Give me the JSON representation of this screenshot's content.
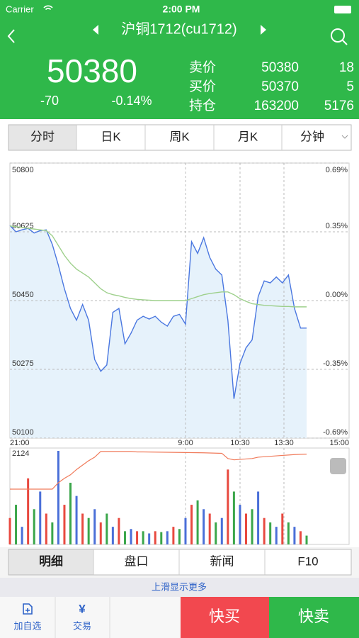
{
  "status": {
    "carrier": "Carrier",
    "time": "2:00 PM"
  },
  "header": {
    "title": "沪铜1712(cu1712)"
  },
  "quote": {
    "last": "50380",
    "change": "-70",
    "change_pct": "-0.14%",
    "book": [
      {
        "label": "卖价",
        "price": "50380",
        "qty": "18"
      },
      {
        "label": "买价",
        "price": "50370",
        "qty": "5"
      },
      {
        "label": "持仓",
        "price": "163200",
        "qty": "5176"
      }
    ]
  },
  "tabs": [
    "分时",
    "日K",
    "周K",
    "月K",
    "分钟"
  ],
  "chart_data": [
    {
      "type": "line",
      "ylim": [
        50100,
        50800
      ],
      "yticks": [
        50100,
        50275,
        50450,
        50625,
        50800
      ],
      "y2ticks": [
        {
          "value": 50100,
          "label": "-0.69%"
        },
        {
          "value": 50275,
          "label": "-0.35%"
        },
        {
          "value": 50450,
          "label": "0.00%"
        },
        {
          "value": 50625,
          "label": "0.35%"
        },
        {
          "value": 50800,
          "label": "0.69%"
        }
      ],
      "time_labels": [
        "21:00",
        "9:00",
        "10:30",
        "13:30",
        "15:00"
      ],
      "grid": true,
      "series": [
        {
          "color": "#4a77e0",
          "fill": "#e6f2fb",
          "values": [
            50641,
            50625,
            50630,
            50634,
            50622,
            50628,
            50630,
            50593,
            50540,
            50480,
            50430,
            50400,
            50440,
            50400,
            50300,
            50270,
            50286,
            50420,
            50430,
            50340,
            50367,
            50400,
            50410,
            50403,
            50410,
            50395,
            50385,
            50410,
            50415,
            50390,
            50600,
            50570,
            50610,
            50560,
            50530,
            50515,
            50400,
            50200,
            50290,
            50330,
            50350,
            50460,
            50500,
            50495,
            50510,
            50495,
            50515,
            50430,
            50380,
            50380
          ]
        },
        {
          "color": "#9ed08c",
          "values": [
            50640,
            50638,
            50636,
            50634,
            50632,
            50630,
            50628,
            50615,
            50590,
            50565,
            50545,
            50530,
            50520,
            50510,
            50495,
            50480,
            50470,
            50465,
            50462,
            50458,
            50455,
            50453,
            50452,
            50451,
            50450,
            50450,
            50450,
            50450,
            50450,
            50450,
            50455,
            50460,
            50465,
            50468,
            50470,
            50472,
            50472,
            50465,
            50455,
            50448,
            50442,
            50440,
            50438,
            50437,
            50436,
            50435,
            50435,
            50434,
            50434,
            50434
          ]
        }
      ]
    },
    {
      "type": "bar",
      "ylim": [
        0,
        2124
      ],
      "yticks": [
        2124
      ],
      "palette": [
        "#e8493f",
        "#3aa64a",
        "#4a6fd8"
      ],
      "values": [
        600,
        900,
        400,
        1500,
        800,
        1200,
        700,
        500,
        2124,
        900,
        1400,
        1100,
        700,
        600,
        800,
        500,
        700,
        400,
        600,
        300,
        350,
        300,
        300,
        250,
        300,
        280,
        300,
        400,
        350,
        600,
        900,
        1000,
        800,
        700,
        500,
        600,
        1700,
        1200,
        900,
        700,
        800,
        1200,
        600,
        500,
        400,
        700,
        500,
        400,
        300,
        200
      ],
      "overlay": {
        "color": "#f07a5a",
        "values": [
          1255,
          1255,
          1255,
          1255,
          1255,
          1255,
          1255,
          1255,
          1400,
          1500,
          1580,
          1700,
          1800,
          1900,
          1980,
          2110,
          2110,
          2110,
          2110,
          2110,
          2110,
          2100,
          2100,
          2098,
          2096,
          2094,
          2092,
          2090,
          2088,
          2086,
          2084,
          2082,
          2080,
          2076,
          2072,
          2068,
          1950,
          1920,
          1930,
          1940,
          1950,
          1980,
          1990,
          2000,
          2010,
          2020,
          2030,
          2040,
          2045,
          2050
        ]
      }
    }
  ],
  "detail_tabs": [
    "明细",
    "盘口",
    "新闻",
    "F10"
  ],
  "more_hint": "上滑显示更多",
  "bottom": {
    "watch": "加自选",
    "trade": "交易",
    "buy": "快买",
    "sell": "快卖"
  }
}
